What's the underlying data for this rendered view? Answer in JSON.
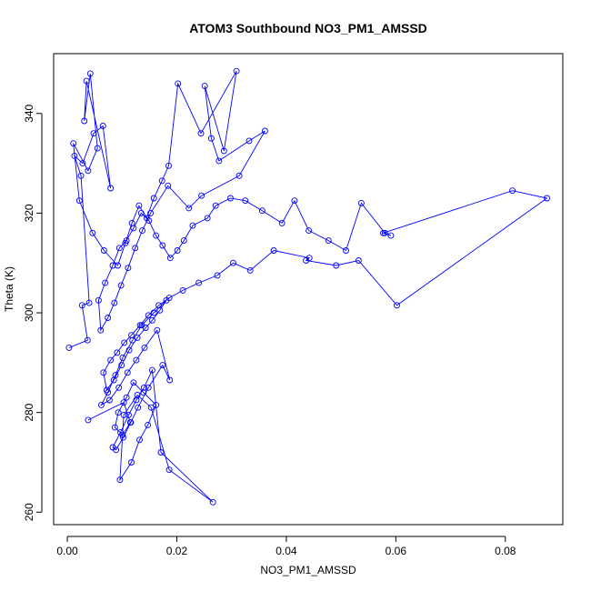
{
  "chart_data": {
    "type": "line",
    "title": "ATOM3 Southbound NO3_PM1_AMSSD",
    "xlabel": "NO3_PM1_AMSSD",
    "ylabel": "Theta (K)",
    "xlim": [
      -0.0025,
      0.0905
    ],
    "ylim": [
      257.5,
      352.0
    ],
    "x_ticks": [
      0.0,
      0.02,
      0.04,
      0.06,
      0.08
    ],
    "x_tick_labels": [
      "0.00",
      "0.02",
      "0.04",
      "0.06",
      "0.08"
    ],
    "y_ticks": [
      260,
      280,
      300,
      320,
      340
    ],
    "y_tick_labels": [
      "260",
      "280",
      "300",
      "320",
      "340"
    ],
    "series_color": "#0000ff",
    "marker": "open-circle",
    "grid": false,
    "series": [
      {
        "x": [
          0.0003,
          0.0037,
          0.0027,
          0.004,
          0.0025,
          0.0013,
          0.0028,
          0.0048,
          0.0065,
          0.0079,
          0.0035,
          0.0031,
          0.0042,
          0.0055,
          0.0038,
          0.0011,
          0.0022,
          0.0046,
          0.0067,
          0.0092,
          0.0106,
          0.0118,
          0.0131,
          0.0145,
          0.0158,
          0.0173,
          0.0185,
          0.0202,
          0.0244,
          0.0309,
          0.0286,
          0.0251,
          0.0263,
          0.0277,
          0.0332,
          0.0361,
          0.0314,
          0.0245,
          0.0222,
          0.0184,
          0.0152,
          0.0137,
          0.0124,
          0.0111,
          0.0098,
          0.0086,
          0.0074,
          0.0061,
          0.0057,
          0.0069,
          0.0083,
          0.0095,
          0.0108,
          0.0121,
          0.0135,
          0.0149,
          0.0162,
          0.0174,
          0.0188,
          0.0201,
          0.0213,
          0.0229,
          0.0256,
          0.0271,
          0.0298,
          0.0325,
          0.0356,
          0.0392,
          0.0415,
          0.0441,
          0.0477,
          0.0509,
          0.0537,
          0.058,
          0.0591,
          0.0577,
          0.0813,
          0.0876,
          0.0602,
          0.0532,
          0.0491,
          0.0436,
          0.0442,
          0.0377,
          0.0334,
          0.0303,
          0.0274,
          0.024,
          0.0211,
          0.0186,
          0.0167,
          0.0148,
          0.0133,
          0.0117,
          0.0104,
          0.0091,
          0.0079,
          0.0066,
          0.0072,
          0.0085,
          0.0099,
          0.0113,
          0.0128,
          0.0143,
          0.0155,
          0.0169,
          0.0181,
          0.0158,
          0.0136,
          0.0119,
          0.0101,
          0.0088,
          0.0074,
          0.0062,
          0.0077,
          0.0094,
          0.011,
          0.0126,
          0.0141,
          0.0164,
          0.0187,
          0.0174,
          0.0148,
          0.0129,
          0.0116,
          0.0102,
          0.0089,
          0.0083,
          0.0097,
          0.0112,
          0.0126,
          0.014,
          0.0155,
          0.0171,
          0.0266,
          0.0186,
          0.0153,
          0.0128,
          0.0103,
          0.0096,
          0.0117,
          0.0132,
          0.0147,
          0.0162,
          0.0139,
          0.0121,
          0.0108,
          0.0093,
          0.0087,
          0.0101,
          0.0115,
          0.0103,
          0.0038
        ],
        "y": [
          293.0,
          294.5,
          301.5,
          302.0,
          327.5,
          331.5,
          330.0,
          336.0,
          337.5,
          325.0,
          346.5,
          338.5,
          348.0,
          333.0,
          328.5,
          334.0,
          322.5,
          316.0,
          312.5,
          309.5,
          314.0,
          318.0,
          321.5,
          319.0,
          323.0,
          326.5,
          329.5,
          346.0,
          336.0,
          348.5,
          332.5,
          345.5,
          335.0,
          330.5,
          334.5,
          336.5,
          327.5,
          323.5,
          321.0,
          325.5,
          320.0,
          316.5,
          313.0,
          309.0,
          305.5,
          302.0,
          299.0,
          296.5,
          302.5,
          306.0,
          309.5,
          313.0,
          314.5,
          317.0,
          320.0,
          318.5,
          315.5,
          313.5,
          311.0,
          312.5,
          314.5,
          317.5,
          319.0,
          321.5,
          323.0,
          322.5,
          320.5,
          318.0,
          322.5,
          316.5,
          314.5,
          312.5,
          322.0,
          316.0,
          315.5,
          316.0,
          324.5,
          323.0,
          301.5,
          310.5,
          309.5,
          310.5,
          311.0,
          312.5,
          308.5,
          310.0,
          307.5,
          306.0,
          304.5,
          303.0,
          301.5,
          299.5,
          297.5,
          295.5,
          294.0,
          292.0,
          290.5,
          288.0,
          284.5,
          286.5,
          289.5,
          292.5,
          295.0,
          297.0,
          298.5,
          300.5,
          302.5,
          300.0,
          297.5,
          294.5,
          291.0,
          287.5,
          284.0,
          281.5,
          282.5,
          285.0,
          288.0,
          290.5,
          293.0,
          296.5,
          286.5,
          289.5,
          285.0,
          281.0,
          278.0,
          275.0,
          272.5,
          273.0,
          276.0,
          279.5,
          282.5,
          285.0,
          288.5,
          272.0,
          262.0,
          268.5,
          281.0,
          283.5,
          279.5,
          266.5,
          270.0,
          274.5,
          277.5,
          281.5,
          284.0,
          286.0,
          283.0,
          280.0,
          277.0,
          275.5,
          278.0,
          282.0,
          278.5
        ]
      }
    ]
  }
}
